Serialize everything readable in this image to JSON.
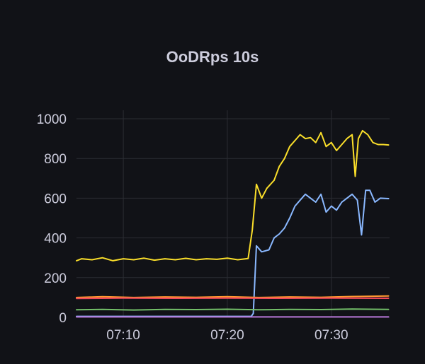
{
  "chart_data": {
    "type": "line",
    "title": "OoDRps 10s",
    "xlabel": "",
    "ylabel": "",
    "x_ticks": [
      "07:10",
      "07:20",
      "07:30"
    ],
    "x_range_minutes": [
      5.5,
      35.6
    ],
    "x_tick_values": [
      10,
      20,
      30
    ],
    "y_ticks": [
      "0",
      "200",
      "400",
      "600",
      "800",
      "1000"
    ],
    "y_tick_values": [
      0,
      200,
      400,
      600,
      800,
      1000
    ],
    "ylim": [
      0,
      1000
    ],
    "grid": true,
    "legend": "none",
    "colors": {
      "background": "#111217",
      "grid": "#2b2d33",
      "text": "#ccccdc"
    },
    "series": [
      {
        "color": "#fade2a",
        "x": [
          5.5,
          6,
          7,
          8,
          9,
          10,
          11,
          12,
          13,
          14,
          15,
          16,
          17,
          18,
          19,
          20,
          21,
          22,
          22.4,
          22.8,
          23.3,
          23.8,
          24.5,
          25,
          25.5,
          26,
          26.5,
          27,
          27.5,
          28,
          28.5,
          29,
          29.5,
          30,
          30.5,
          31,
          31.5,
          32,
          32.3,
          32.6,
          33,
          33.5,
          34,
          34.5,
          35,
          35.5
        ],
        "y": [
          285,
          295,
          290,
          300,
          285,
          295,
          290,
          298,
          288,
          295,
          290,
          297,
          290,
          295,
          292,
          298,
          290,
          296,
          440,
          670,
          600,
          650,
          690,
          760,
          800,
          860,
          890,
          920,
          900,
          905,
          880,
          930,
          860,
          880,
          840,
          870,
          900,
          920,
          710,
          900,
          940,
          920,
          880,
          870,
          870,
          868
        ]
      },
      {
        "color": "#8ab8ff",
        "x": [
          5.5,
          10,
          15,
          20,
          22.3,
          22.5,
          22.8,
          23.3,
          24,
          24.5,
          25,
          25.5,
          26,
          26.5,
          27,
          27.5,
          28,
          28.5,
          29,
          29.5,
          30,
          30.5,
          31,
          31.5,
          32,
          32.5,
          32.9,
          33.3,
          33.7,
          34.2,
          34.7,
          35.5
        ],
        "y": [
          5,
          5,
          5,
          5,
          5,
          20,
          360,
          330,
          340,
          400,
          420,
          450,
          500,
          560,
          590,
          620,
          600,
          580,
          620,
          530,
          560,
          540,
          580,
          600,
          620,
          590,
          415,
          640,
          640,
          580,
          600,
          598
        ]
      },
      {
        "color": "#ff9830",
        "x": [
          5.5,
          8,
          11,
          14,
          17,
          20,
          23,
          26,
          29,
          32,
          35.5
        ],
        "y": [
          100,
          104,
          100,
          103,
          101,
          104,
          100,
          103,
          101,
          105,
          108
        ]
      },
      {
        "color": "#f2495c",
        "x": [
          5.5,
          10,
          15,
          20,
          25,
          30,
          35.5
        ],
        "y": [
          95,
          97,
          96,
          97,
          96,
          97,
          96
        ]
      },
      {
        "color": "#73bf69",
        "x": [
          5.5,
          8,
          11,
          14,
          17,
          20,
          23,
          26,
          29,
          32,
          35.5
        ],
        "y": [
          38,
          40,
          37,
          40,
          39,
          41,
          38,
          40,
          39,
          42,
          40
        ]
      },
      {
        "color": "#b877d9",
        "x": [
          5.5,
          35.5
        ],
        "y": [
          2,
          2
        ]
      }
    ]
  }
}
